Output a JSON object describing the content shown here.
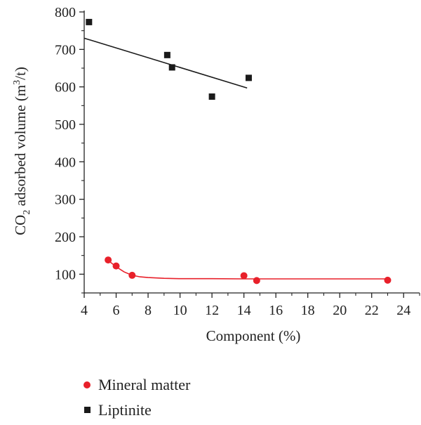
{
  "chart_data": {
    "type": "scatter",
    "xlabel": "Component (%)",
    "ylabel": {
      "prefix": "CO",
      "sub": "2",
      "middle": " adsorbed volume (m",
      "sup": "3",
      "suffix": "/t)"
    },
    "xlim": [
      4,
      25
    ],
    "ylim": [
      50,
      800
    ],
    "x_ticks": [
      4,
      6,
      8,
      10,
      12,
      14,
      16,
      18,
      20,
      22,
      24
    ],
    "y_ticks": [
      100,
      200,
      300,
      400,
      500,
      600,
      700,
      800
    ],
    "grid": false,
    "legend_position": "bottom-left",
    "series": [
      {
        "name": "Mineral matter",
        "marker": "circle",
        "color": "#e8202a",
        "points": [
          [
            5.5,
            138
          ],
          [
            6.0,
            122
          ],
          [
            7.0,
            97
          ],
          [
            14.0,
            96
          ],
          [
            14.8,
            83
          ],
          [
            23.0,
            84
          ]
        ],
        "fit_curve": [
          [
            5.5,
            137
          ],
          [
            6.0,
            120
          ],
          [
            6.5,
            106
          ],
          [
            7.0,
            97
          ],
          [
            7.5,
            93
          ],
          [
            8.0,
            91
          ],
          [
            9.0,
            89
          ],
          [
            10.0,
            88
          ],
          [
            12.0,
            88
          ],
          [
            14.0,
            87.5
          ],
          [
            16.0,
            87.5
          ],
          [
            18.0,
            87.5
          ],
          [
            20.0,
            87.5
          ],
          [
            23.0,
            87.5
          ]
        ]
      },
      {
        "name": "Liptinite",
        "marker": "square",
        "color": "#1a1a1a",
        "points": [
          [
            4.3,
            773
          ],
          [
            9.2,
            685
          ],
          [
            9.5,
            652
          ],
          [
            12.0,
            574
          ],
          [
            14.3,
            624
          ]
        ],
        "fit_line": [
          [
            4.0,
            730
          ],
          [
            14.2,
            597
          ]
        ]
      }
    ]
  }
}
